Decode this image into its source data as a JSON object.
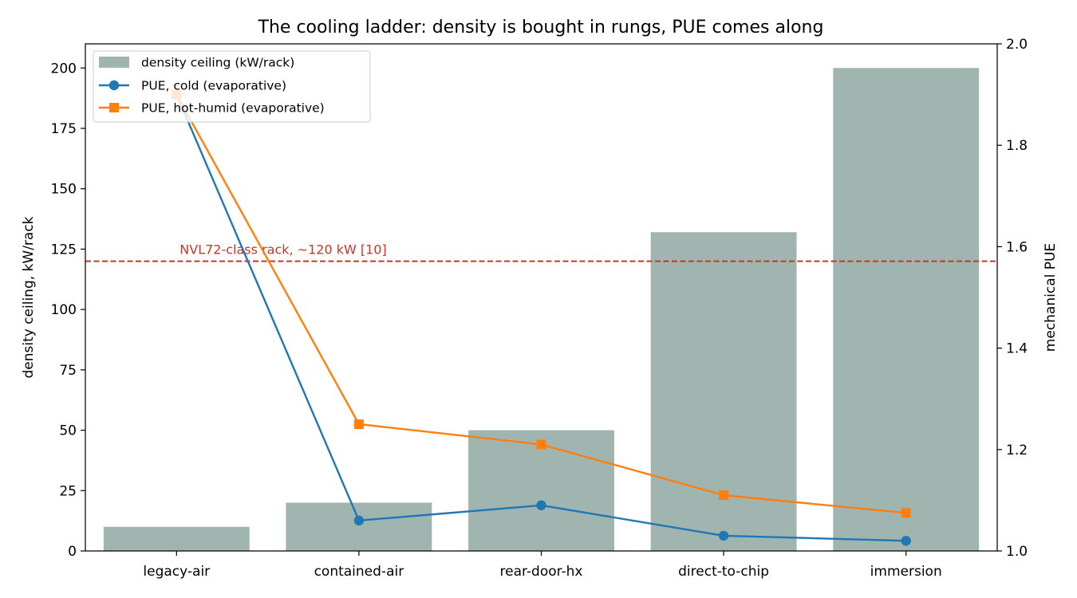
{
  "chart_data": {
    "type": "bar",
    "title": "The cooling ladder: density is bought in rungs, PUE comes along",
    "categories": [
      "legacy-air",
      "contained-air",
      "rear-door-hx",
      "direct-to-chip",
      "immersion"
    ],
    "xlabel": "",
    "ylabel": "density ceiling, kW/rack",
    "y2label": "mechanical PUE",
    "ylim": [
      0,
      210
    ],
    "y2lim": [
      1.0,
      2.0
    ],
    "yticks": [
      0,
      25,
      50,
      75,
      100,
      125,
      150,
      175,
      200
    ],
    "y2ticks": [
      1.0,
      1.2,
      1.4,
      1.6,
      1.8,
      2.0
    ],
    "yticklabels": [
      "0",
      "25",
      "50",
      "75",
      "100",
      "125",
      "150",
      "175",
      "200"
    ],
    "y2ticklabels": [
      "1.0",
      "1.2",
      "1.4",
      "1.6",
      "1.8",
      "2.0"
    ],
    "grid": false,
    "legend_position": "top-left",
    "series": [
      {
        "name": "density ceiling (kW/rack)",
        "type": "bar",
        "axis": "left",
        "color": "#a0b4b0",
        "values": [
          10,
          20,
          50,
          132,
          200
        ]
      },
      {
        "name": "PUE, cold (evaporative)",
        "type": "line",
        "axis": "right",
        "color": "#1f77b4",
        "marker": "circle",
        "values": [
          1.9,
          1.06,
          1.09,
          1.03,
          1.02
        ]
      },
      {
        "name": "PUE, hot-humid (evaporative)",
        "type": "line",
        "axis": "right",
        "color": "#ff7f0e",
        "marker": "square",
        "values": [
          1.9,
          1.25,
          1.21,
          1.11,
          1.075
        ]
      }
    ],
    "reference_line": {
      "axis": "left",
      "value": 120,
      "color": "#c0392b",
      "style": "dashed",
      "label": "NVL72-class rack, ~120 kW [10]"
    }
  }
}
